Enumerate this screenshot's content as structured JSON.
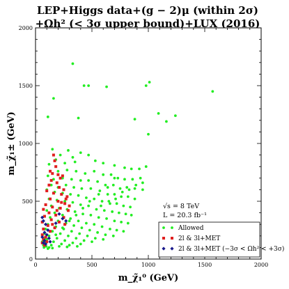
{
  "chart_data": {
    "type": "scatter",
    "title_line1": "LEP+Higgs data+(g − 2)μ (within 2σ)",
    "title_line2": "+Ωh² (< 3σ upper bound)+LUX (2016)",
    "xlabel": "m_χ̃₁⁰ (GeV)",
    "ylabel": "m_χ̃₁± (GeV)",
    "xlim": [
      0,
      2000
    ],
    "ylim": [
      0,
      2000
    ],
    "xticks": [
      0,
      500,
      1000,
      1500,
      2000
    ],
    "yticks": [
      0,
      500,
      1000,
      1500,
      2000
    ],
    "annotation_line1": "√s = 8 TeV",
    "annotation_line2": "L = 20.3 fb⁻¹",
    "legend_position": "bottom-right",
    "series": [
      {
        "name": "Allowed",
        "color": "#22ee22",
        "marker": "circle",
        "points": [
          [
            330,
            1690
          ],
          [
            1010,
            1530
          ],
          [
            430,
            1500
          ],
          [
            470,
            1500
          ],
          [
            980,
            1500
          ],
          [
            630,
            1490
          ],
          [
            1570,
            1450
          ],
          [
            160,
            1390
          ],
          [
            380,
            1220
          ],
          [
            1090,
            1260
          ],
          [
            1240,
            1240
          ],
          [
            110,
            1230
          ],
          [
            880,
            1210
          ],
          [
            1160,
            1190
          ],
          [
            1000,
            1080
          ],
          [
            150,
            950
          ],
          [
            290,
            940
          ],
          [
            220,
            900
          ],
          [
            330,
            880
          ],
          [
            400,
            920
          ],
          [
            470,
            900
          ],
          [
            120,
            820
          ],
          [
            180,
            860
          ],
          [
            260,
            830
          ],
          [
            350,
            840
          ],
          [
            530,
            850
          ],
          [
            600,
            830
          ],
          [
            700,
            810
          ],
          [
            790,
            790
          ],
          [
            850,
            780
          ],
          [
            920,
            780
          ],
          [
            980,
            800
          ],
          [
            200,
            760
          ],
          [
            280,
            770
          ],
          [
            360,
            760
          ],
          [
            440,
            740
          ],
          [
            520,
            760
          ],
          [
            600,
            730
          ],
          [
            670,
            730
          ],
          [
            730,
            700
          ],
          [
            790,
            690
          ],
          [
            860,
            690
          ],
          [
            930,
            700
          ],
          [
            110,
            720
          ],
          [
            160,
            690
          ],
          [
            240,
            700
          ],
          [
            320,
            690
          ],
          [
            400,
            680
          ],
          [
            470,
            680
          ],
          [
            550,
            670
          ],
          [
            620,
            640
          ],
          [
            690,
            640
          ],
          [
            750,
            610
          ],
          [
            810,
            620
          ],
          [
            880,
            610
          ],
          [
            950,
            600
          ],
          [
            140,
            640
          ],
          [
            200,
            620
          ],
          [
            270,
            640
          ],
          [
            340,
            620
          ],
          [
            410,
            610
          ],
          [
            490,
            610
          ],
          [
            570,
            590
          ],
          [
            640,
            560
          ],
          [
            700,
            560
          ],
          [
            760,
            540
          ],
          [
            820,
            540
          ],
          [
            880,
            520
          ],
          [
            100,
            600
          ],
          [
            170,
            580
          ],
          [
            240,
            570
          ],
          [
            310,
            560
          ],
          [
            380,
            550
          ],
          [
            450,
            530
          ],
          [
            520,
            520
          ],
          [
            590,
            500
          ],
          [
            660,
            480
          ],
          [
            720,
            480
          ],
          [
            780,
            460
          ],
          [
            840,
            450
          ],
          [
            120,
            520
          ],
          [
            190,
            510
          ],
          [
            260,
            500
          ],
          [
            330,
            490
          ],
          [
            400,
            470
          ],
          [
            470,
            460
          ],
          [
            540,
            430
          ],
          [
            610,
            420
          ],
          [
            680,
            410
          ],
          [
            740,
            400
          ],
          [
            800,
            390
          ],
          [
            850,
            380
          ],
          [
            140,
            460
          ],
          [
            210,
            440
          ],
          [
            280,
            430
          ],
          [
            350,
            410
          ],
          [
            420,
            390
          ],
          [
            490,
            380
          ],
          [
            560,
            360
          ],
          [
            630,
            350
          ],
          [
            700,
            330
          ],
          [
            760,
            320
          ],
          [
            820,
            310
          ],
          [
            100,
            420
          ],
          [
            170,
            400
          ],
          [
            240,
            380
          ],
          [
            310,
            350
          ],
          [
            380,
            330
          ],
          [
            450,
            310
          ],
          [
            520,
            300
          ],
          [
            590,
            280
          ],
          [
            660,
            260
          ],
          [
            720,
            250
          ],
          [
            780,
            240
          ],
          [
            130,
            360
          ],
          [
            200,
            330
          ],
          [
            270,
            310
          ],
          [
            340,
            290
          ],
          [
            410,
            270
          ],
          [
            480,
            250
          ],
          [
            550,
            230
          ],
          [
            620,
            210
          ],
          [
            690,
            200
          ],
          [
            110,
            300
          ],
          [
            180,
            280
          ],
          [
            250,
            260
          ],
          [
            320,
            240
          ],
          [
            390,
            220
          ],
          [
            460,
            200
          ],
          [
            530,
            180
          ],
          [
            600,
            170
          ],
          [
            150,
            240
          ],
          [
            220,
            220
          ],
          [
            290,
            200
          ],
          [
            360,
            180
          ],
          [
            430,
            160
          ],
          [
            500,
            150
          ],
          [
            90,
            260
          ],
          [
            120,
            200
          ],
          [
            190,
            180
          ],
          [
            260,
            160
          ],
          [
            330,
            140
          ],
          [
            400,
            130
          ],
          [
            80,
            220
          ],
          [
            100,
            170
          ],
          [
            160,
            150
          ],
          [
            230,
            130
          ],
          [
            300,
            120
          ],
          [
            370,
            110
          ],
          [
            90,
            140
          ],
          [
            140,
            120
          ],
          [
            210,
            110
          ],
          [
            280,
            105
          ],
          [
            70,
            120
          ],
          [
            120,
            100
          ],
          [
            80,
            180
          ],
          [
            60,
            150
          ],
          [
            75,
            100
          ],
          [
            110,
            90
          ],
          [
            95,
            110
          ],
          [
            150,
            95
          ],
          [
            580,
            460
          ],
          [
            650,
            500
          ],
          [
            710,
            520
          ],
          [
            770,
            580
          ],
          [
            830,
            600
          ],
          [
            890,
            640
          ],
          [
            950,
            660
          ],
          [
            700,
            700
          ],
          [
            640,
            620
          ],
          [
            560,
            560
          ],
          [
            480,
            500
          ],
          [
            420,
            440
          ],
          [
            360,
            380
          ],
          [
            300,
            330
          ],
          [
            240,
            270
          ],
          [
            180,
            210
          ]
        ]
      },
      {
        "name": "2l & 3l+MET",
        "color": "#e02020",
        "marker": "square",
        "points": [
          [
            160,
            900
          ],
          [
            170,
            850
          ],
          [
            180,
            800
          ],
          [
            130,
            760
          ],
          [
            150,
            740
          ],
          [
            200,
            730
          ],
          [
            220,
            700
          ],
          [
            240,
            720
          ],
          [
            140,
            680
          ],
          [
            190,
            660
          ],
          [
            120,
            640
          ],
          [
            210,
            620
          ],
          [
            250,
            600
          ],
          [
            100,
            590
          ],
          [
            160,
            570
          ],
          [
            230,
            560
          ],
          [
            280,
            540
          ],
          [
            130,
            520
          ],
          [
            200,
            500
          ],
          [
            260,
            480
          ],
          [
            90,
            470
          ],
          [
            150,
            450
          ],
          [
            220,
            440
          ],
          [
            290,
            420
          ],
          [
            70,
            430
          ],
          [
            120,
            400
          ],
          [
            180,
            380
          ],
          [
            250,
            360
          ],
          [
            80,
            370
          ],
          [
            140,
            340
          ],
          [
            210,
            320
          ],
          [
            60,
            320
          ],
          [
            110,
            290
          ],
          [
            170,
            270
          ],
          [
            70,
            260
          ],
          [
            130,
            240
          ],
          [
            60,
            210
          ],
          [
            90,
            190
          ],
          [
            70,
            170
          ],
          [
            100,
            150
          ],
          [
            60,
            140
          ],
          [
            80,
            120
          ],
          [
            230,
            490
          ],
          [
            270,
            520
          ],
          [
            300,
            460
          ],
          [
            190,
            420
          ],
          [
            260,
            300
          ],
          [
            150,
            300
          ]
        ]
      },
      {
        "name": "2l & 3l+MET (−3σ < Ωh² < +3σ)",
        "color": "#1a1a8c",
        "marker": "diamond",
        "points": [
          [
            60,
            360
          ],
          [
            70,
            330
          ],
          [
            90,
            300
          ],
          [
            110,
            250
          ],
          [
            80,
            230
          ],
          [
            100,
            210
          ],
          [
            60,
            190
          ],
          [
            120,
            180
          ],
          [
            80,
            160
          ],
          [
            70,
            140
          ],
          [
            130,
            150
          ],
          [
            90,
            130
          ],
          [
            210,
            390
          ],
          [
            240,
            350
          ],
          [
            180,
            310
          ],
          [
            270,
            330
          ]
        ]
      }
    ]
  }
}
